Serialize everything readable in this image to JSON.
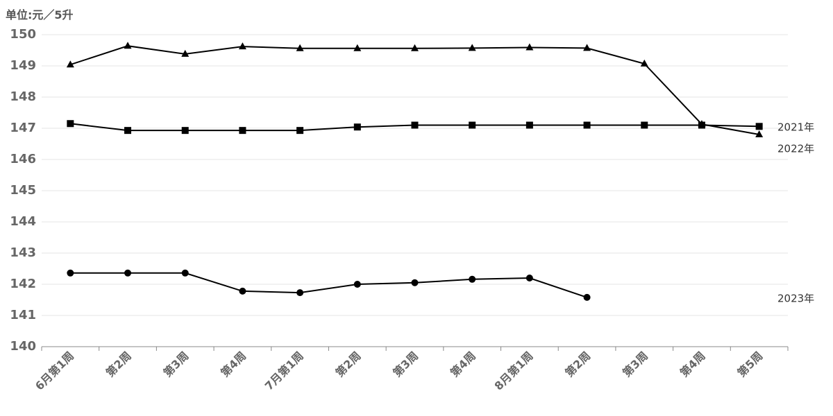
{
  "chart_data": {
    "type": "line",
    "y_label": "单位:元／5升",
    "categories": [
      "6月第1周",
      "第2周",
      "第3周",
      "第4周",
      "7月第1周",
      "第2周",
      "第3周",
      "第4周",
      "8月第1周",
      "第2周",
      "第3周",
      "第4周",
      "第5周"
    ],
    "series": [
      {
        "name": "2021年",
        "color": "#000000",
        "marker": "square",
        "values": [
          147.15,
          146.93,
          146.93,
          146.93,
          146.93,
          147.04,
          147.1,
          147.1,
          147.1,
          147.1,
          147.1,
          147.1,
          147.06
        ]
      },
      {
        "name": "2022年",
        "color": "#000000",
        "marker": "triangle",
        "values": [
          149.04,
          149.64,
          149.38,
          149.62,
          149.56,
          149.56,
          149.56,
          149.57,
          149.59,
          149.57,
          149.07,
          147.13,
          146.8
        ]
      },
      {
        "name": "2023年",
        "color": "#000000",
        "marker": "circle",
        "values": [
          142.36,
          142.36,
          142.36,
          141.78,
          141.73,
          142.0,
          142.05,
          142.16,
          142.2,
          141.58,
          null,
          null,
          null
        ]
      }
    ],
    "ylim": [
      140,
      150
    ],
    "yticks": [
      140,
      141,
      142,
      143,
      144,
      145,
      146,
      147,
      148,
      149,
      150
    ],
    "grid": true
  }
}
